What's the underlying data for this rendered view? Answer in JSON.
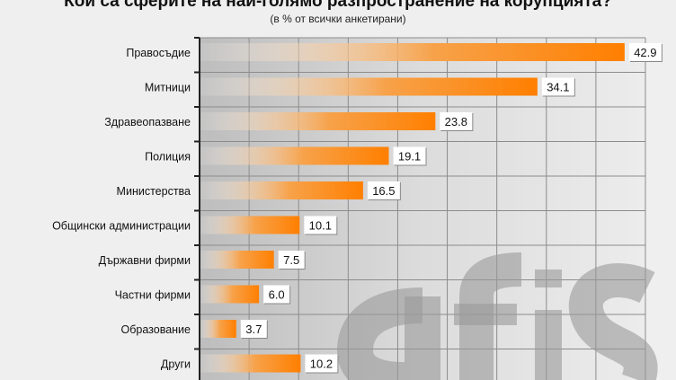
{
  "chart_data": {
    "type": "bar",
    "orientation": "horizontal",
    "title": "Кои са сферите на най-голямо разпространение на корупцията?",
    "subtitle": "(в % от всички анкетирани)",
    "categories": [
      "Правосъдие",
      "Митници",
      "Здравеопазване",
      "Полиция",
      "Министерства",
      "Общински администрации",
      "Държавни фирми",
      "Частни фирми",
      "Образование",
      "Други"
    ],
    "values": [
      42.9,
      34.1,
      23.8,
      19.1,
      16.5,
      10.1,
      7.5,
      6.0,
      3.7,
      10.2
    ],
    "value_labels": [
      "42.9",
      "34.1",
      "23.8",
      "19.1",
      "16.5",
      "10.1",
      "7.5",
      "6.0",
      "3.7",
      "10.2"
    ],
    "xlim": [
      0,
      45
    ],
    "grid": true,
    "bar_color": "#ff7f00",
    "watermark": "afis"
  }
}
